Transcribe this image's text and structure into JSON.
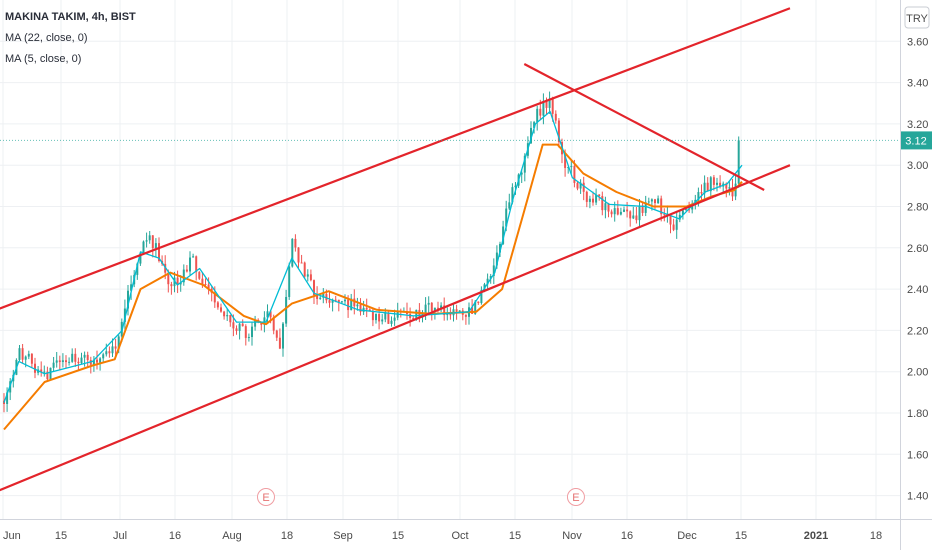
{
  "legend": {
    "title_line": "MAKINA TAKIM, 4h, BIST",
    "ma_long_label": "MA (22, close, 0)",
    "ma_short_label": "MA (5, close, 0)"
  },
  "currency_badge": "TRY",
  "last_price_label": "3.12",
  "event_marker": "E",
  "colors": {
    "up": "#26a69a",
    "down": "#ef5350",
    "ma_long": "#f57c00",
    "ma_short": "#00bcd4",
    "trendline": "#e3242b",
    "grid": "#eef0f3",
    "price_badge": "#26a69a"
  },
  "chart_data": {
    "type": "candlestick",
    "title": "MAKINA TAKIM, 4h, BIST",
    "ylabel": "TRY",
    "ylim": [
      1.3,
      3.75
    ],
    "y_ticks": [
      1.4,
      1.6,
      1.8,
      2.0,
      2.2,
      2.4,
      2.6,
      2.8,
      3.0,
      3.2,
      3.4,
      3.6
    ],
    "y_tick_labels": [
      "1.40",
      "1.60",
      "1.80",
      "2.00",
      "2.20",
      "2.40",
      "2.60",
      "2.80",
      "3.00",
      "3.20",
      "3.40",
      "3.60"
    ],
    "x_ticks": [
      "Jun",
      "15",
      "Jul",
      "16",
      "Aug",
      "18",
      "Sep",
      "15",
      "Oct",
      "15",
      "Nov",
      "16",
      "Dec",
      "15",
      "2021",
      "18"
    ],
    "grid": true,
    "last_price": 3.12,
    "price_path": [
      {
        "x": "Jun 1",
        "y": 1.86
      },
      {
        "x": "Jun 5",
        "y": 2.1
      },
      {
        "x": "Jun 12",
        "y": 1.98
      },
      {
        "x": "Jun 18",
        "y": 2.08
      },
      {
        "x": "Jun 25",
        "y": 2.06
      },
      {
        "x": "Jul 1",
        "y": 2.12
      },
      {
        "x": "Jul 6",
        "y": 2.45
      },
      {
        "x": "Jul 10",
        "y": 2.66
      },
      {
        "x": "Jul 13",
        "y": 2.56
      },
      {
        "x": "Jul 16",
        "y": 2.4
      },
      {
        "x": "Jul 22",
        "y": 2.54
      },
      {
        "x": "Jul 28",
        "y": 2.34
      },
      {
        "x": "Aug 5",
        "y": 2.18
      },
      {
        "x": "Aug 11",
        "y": 2.28
      },
      {
        "x": "Aug 15",
        "y": 2.12
      },
      {
        "x": "Aug 18",
        "y": 2.62
      },
      {
        "x": "Aug 24",
        "y": 2.38
      },
      {
        "x": "Sep 1",
        "y": 2.34
      },
      {
        "x": "Sep 10",
        "y": 2.27
      },
      {
        "x": "Sep 18",
        "y": 2.26
      },
      {
        "x": "Sep 25",
        "y": 2.32
      },
      {
        "x": "Oct 1",
        "y": 2.27
      },
      {
        "x": "Oct 7",
        "y": 2.31
      },
      {
        "x": "Oct 12",
        "y": 2.52
      },
      {
        "x": "Oct 16",
        "y": 2.85
      },
      {
        "x": "Oct 20",
        "y": 3.0
      },
      {
        "x": "Oct 23",
        "y": 3.25
      },
      {
        "x": "Oct 27",
        "y": 3.32
      },
      {
        "x": "Oct 30",
        "y": 3.05
      },
      {
        "x": "Nov 5",
        "y": 2.86
      },
      {
        "x": "Nov 12",
        "y": 2.8
      },
      {
        "x": "Nov 18",
        "y": 2.74
      },
      {
        "x": "Nov 24",
        "y": 2.84
      },
      {
        "x": "Nov 30",
        "y": 2.7
      },
      {
        "x": "Dec 5",
        "y": 2.84
      },
      {
        "x": "Dec 10",
        "y": 2.93
      },
      {
        "x": "Dec 14",
        "y": 2.9
      },
      {
        "x": "Dec 16",
        "y": 2.86
      },
      {
        "x": "Dec 18",
        "y": 3.12
      }
    ],
    "series": [
      {
        "name": "MA (22, close, 0)",
        "values": [
          {
            "x": "Jun 1",
            "y": 1.72
          },
          {
            "x": "Jun 12",
            "y": 1.95
          },
          {
            "x": "Jun 25",
            "y": 2.03
          },
          {
            "x": "Jul 1",
            "y": 2.06
          },
          {
            "x": "Jul 8",
            "y": 2.4
          },
          {
            "x": "Jul 16",
            "y": 2.48
          },
          {
            "x": "Jul 25",
            "y": 2.42
          },
          {
            "x": "Aug 5",
            "y": 2.27
          },
          {
            "x": "Aug 11",
            "y": 2.23
          },
          {
            "x": "Aug 18",
            "y": 2.33
          },
          {
            "x": "Aug 28",
            "y": 2.39
          },
          {
            "x": "Sep 10",
            "y": 2.3
          },
          {
            "x": "Sep 25",
            "y": 2.28
          },
          {
            "x": "Oct 7",
            "y": 2.29
          },
          {
            "x": "Oct 14",
            "y": 2.4
          },
          {
            "x": "Oct 20",
            "y": 2.78
          },
          {
            "x": "Oct 25",
            "y": 3.1
          },
          {
            "x": "Oct 29",
            "y": 3.1
          },
          {
            "x": "Nov 5",
            "y": 2.96
          },
          {
            "x": "Nov 14",
            "y": 2.87
          },
          {
            "x": "Nov 24",
            "y": 2.8
          },
          {
            "x": "Dec 3",
            "y": 2.8
          },
          {
            "x": "Dec 10",
            "y": 2.85
          },
          {
            "x": "Dec 16",
            "y": 2.88
          },
          {
            "x": "Dec 18",
            "y": 2.92
          }
        ]
      },
      {
        "name": "MA (5, close, 0)",
        "values": [
          {
            "x": "Jun 1",
            "y": 1.85
          },
          {
            "x": "Jun 5",
            "y": 2.05
          },
          {
            "x": "Jun 12",
            "y": 1.99
          },
          {
            "x": "Jun 25",
            "y": 2.05
          },
          {
            "x": "Jul 3",
            "y": 2.2
          },
          {
            "x": "Jul 8",
            "y": 2.58
          },
          {
            "x": "Jul 13",
            "y": 2.55
          },
          {
            "x": "Jul 18",
            "y": 2.42
          },
          {
            "x": "Jul 24",
            "y": 2.5
          },
          {
            "x": "Aug 3",
            "y": 2.24
          },
          {
            "x": "Aug 11",
            "y": 2.24
          },
          {
            "x": "Aug 18",
            "y": 2.55
          },
          {
            "x": "Aug 24",
            "y": 2.38
          },
          {
            "x": "Sep 5",
            "y": 2.3
          },
          {
            "x": "Sep 20",
            "y": 2.27
          },
          {
            "x": "Oct 5",
            "y": 2.29
          },
          {
            "x": "Oct 12",
            "y": 2.48
          },
          {
            "x": "Oct 17",
            "y": 2.84
          },
          {
            "x": "Oct 23",
            "y": 3.2
          },
          {
            "x": "Oct 27",
            "y": 3.26
          },
          {
            "x": "Nov 2",
            "y": 2.94
          },
          {
            "x": "Nov 12",
            "y": 2.81
          },
          {
            "x": "Nov 22",
            "y": 2.8
          },
          {
            "x": "Dec 1",
            "y": 2.74
          },
          {
            "x": "Dec 8",
            "y": 2.87
          },
          {
            "x": "Dec 14",
            "y": 2.91
          },
          {
            "x": "Dec 18",
            "y": 3.0
          }
        ]
      }
    ],
    "annotations": {
      "channel_upper": [
        {
          "x": "May 30",
          "y": 2.3
        },
        {
          "x": "Dec 31",
          "y": 3.76
        }
      ],
      "channel_lower": [
        {
          "x": "May 30",
          "y": 1.42
        },
        {
          "x": "Dec 31",
          "y": 3.0
        }
      ],
      "descending_trendline": [
        {
          "x": "Oct 20",
          "y": 3.49
        },
        {
          "x": "Dec 24",
          "y": 2.88
        }
      ],
      "events": [
        {
          "x": "Aug 11",
          "label": "E"
        },
        {
          "x": "Nov 3",
          "label": "E"
        }
      ]
    }
  }
}
